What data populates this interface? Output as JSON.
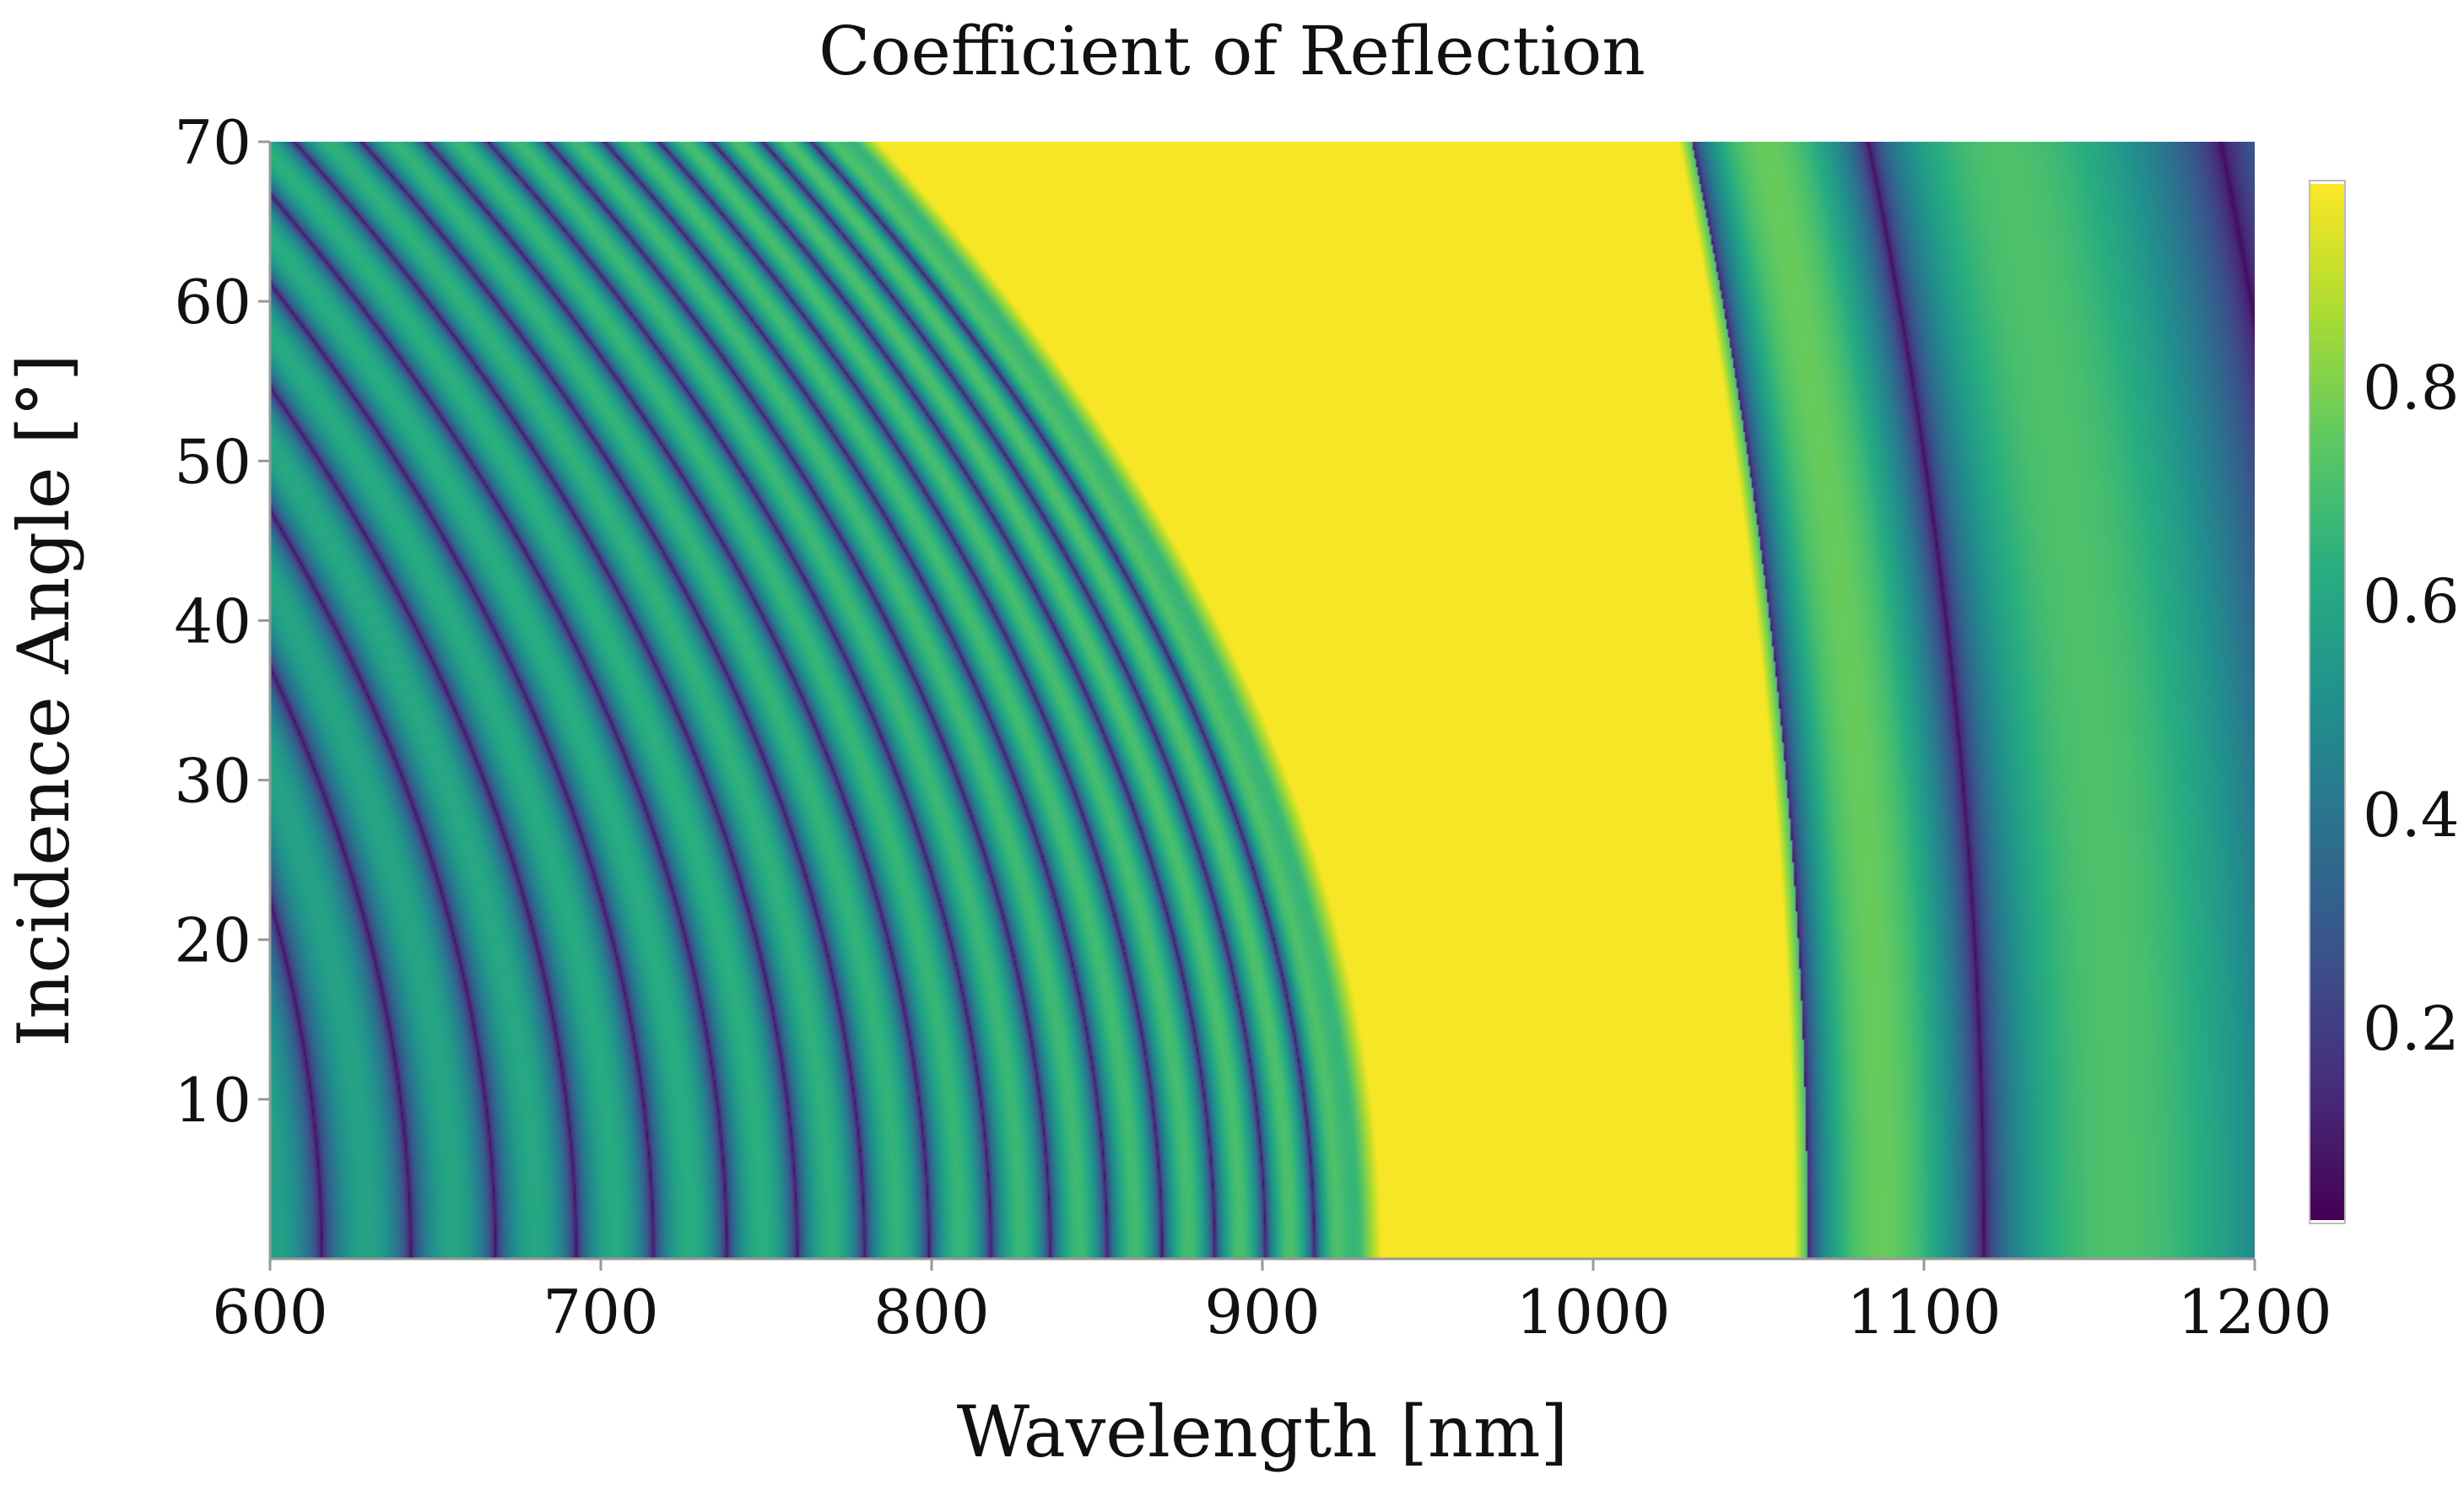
{
  "chart_data": {
    "type": "heatmap",
    "title": "Coefficient of Reflection",
    "xlabel": "Wavelength [nm]",
    "ylabel": "Incidence Angle [°]",
    "xlim": [
      600,
      1200
    ],
    "ylim": [
      0,
      70
    ],
    "xticks": [
      600,
      700,
      800,
      900,
      1000,
      1100,
      1200
    ],
    "yticks": [
      10,
      20,
      30,
      40,
      50,
      60,
      70
    ],
    "colorbar": {
      "range": [
        0.02,
        0.99
      ],
      "ticks": [
        0.2,
        0.4,
        0.6,
        0.8
      ],
      "colormap": "viridis"
    },
    "stopband_edges_nm": {
      "lower": [
        {
          "angle": 0,
          "wavelength": 930
        },
        {
          "angle": 70,
          "wavelength": 778
        }
      ],
      "upper": [
        {
          "angle": 0,
          "wavelength": 1065
        },
        {
          "angle": 70,
          "wavelength": 1030
        }
      ]
    },
    "reflectance_levels": {
      "stopband": 0.98,
      "sidelobe_peak": 0.72,
      "minimum": 0.03
    }
  },
  "colors": {
    "background": "#ffffff",
    "axis": "#999999",
    "text": "#111111"
  }
}
